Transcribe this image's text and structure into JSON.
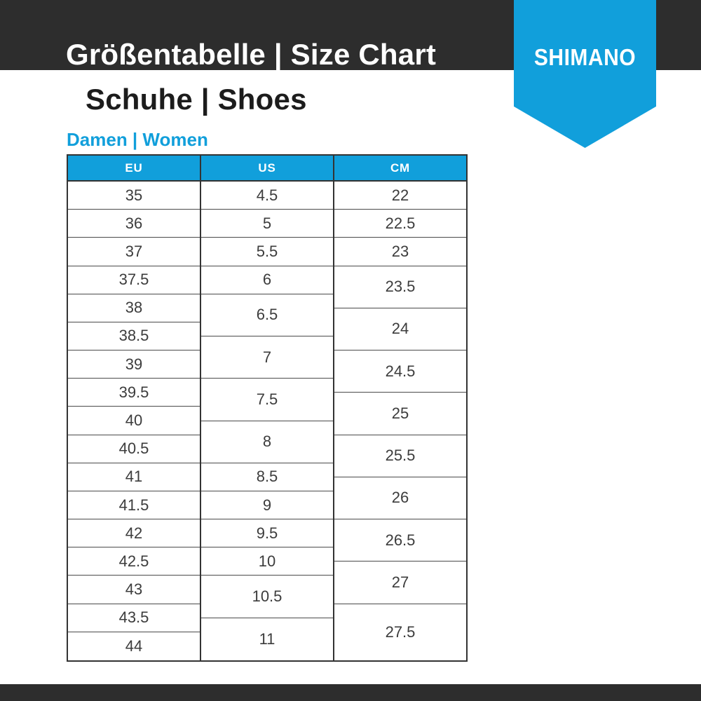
{
  "page": {
    "title": "Größentabelle | Size Chart",
    "subtitle": "Schuhe | Shoes",
    "brand": "SHIMANO",
    "section_label": "Damen | Women"
  },
  "colors": {
    "blue": "#119FDB",
    "band": "#2D2D2D",
    "grid-frame": "#333333",
    "grid-line": "#4A4A4A",
    "cell-text": "#3C3C3C"
  },
  "table": {
    "unit_rows": 34,
    "columns": [
      {
        "header": "EU",
        "cells": [
          {
            "value": "35",
            "span": 2
          },
          {
            "value": "36",
            "span": 2
          },
          {
            "value": "37",
            "span": 2
          },
          {
            "value": "37.5",
            "span": 2
          },
          {
            "value": "38",
            "span": 2
          },
          {
            "value": "38.5",
            "span": 2
          },
          {
            "value": "39",
            "span": 2
          },
          {
            "value": "39.5",
            "span": 2
          },
          {
            "value": "40",
            "span": 2
          },
          {
            "value": "40.5",
            "span": 2
          },
          {
            "value": "41",
            "span": 2
          },
          {
            "value": "41.5",
            "span": 2
          },
          {
            "value": "42",
            "span": 2
          },
          {
            "value": "42.5",
            "span": 2
          },
          {
            "value": "43",
            "span": 2
          },
          {
            "value": "43.5",
            "span": 2
          },
          {
            "value": "44",
            "span": 2
          }
        ]
      },
      {
        "header": "US",
        "cells": [
          {
            "value": "4.5",
            "span": 2
          },
          {
            "value": "5",
            "span": 2
          },
          {
            "value": "5.5",
            "span": 2
          },
          {
            "value": "6",
            "span": 2
          },
          {
            "value": "6.5",
            "span": 3
          },
          {
            "value": "7",
            "span": 3
          },
          {
            "value": "7.5",
            "span": 3
          },
          {
            "value": "8",
            "span": 3
          },
          {
            "value": "8.5",
            "span": 2
          },
          {
            "value": "9",
            "span": 2
          },
          {
            "value": "9.5",
            "span": 2
          },
          {
            "value": "10",
            "span": 2
          },
          {
            "value": "10.5",
            "span": 3
          },
          {
            "value": "11",
            "span": 3
          }
        ]
      },
      {
        "header": "CM",
        "cells": [
          {
            "value": "22",
            "span": 2
          },
          {
            "value": "22.5",
            "span": 2
          },
          {
            "value": "23",
            "span": 2
          },
          {
            "value": "23.5",
            "span": 3
          },
          {
            "value": "24",
            "span": 3
          },
          {
            "value": "24.5",
            "span": 3
          },
          {
            "value": "25",
            "span": 3
          },
          {
            "value": "25.5",
            "span": 3
          },
          {
            "value": "26",
            "span": 3
          },
          {
            "value": "26.5",
            "span": 3
          },
          {
            "value": "27",
            "span": 3
          },
          {
            "value": "27.5",
            "span": 4
          }
        ]
      }
    ]
  }
}
